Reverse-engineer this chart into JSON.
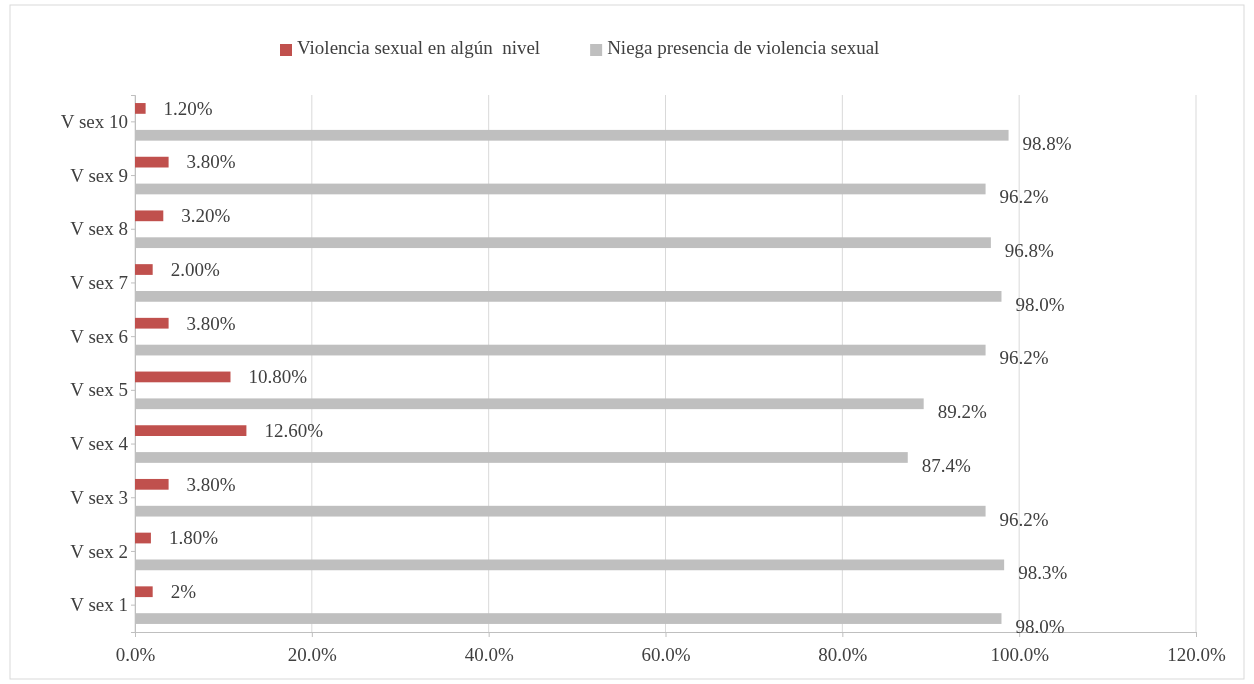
{
  "chart_data": {
    "type": "bar",
    "orientation": "horizontal",
    "categories": [
      "V sex 10",
      "V sex 9",
      "V sex 8",
      "V sex 7",
      "V sex 6",
      "V sex 5",
      "V sex 4",
      "V sex 3",
      "V sex 2",
      "V sex 1"
    ],
    "series": [
      {
        "name": "Violencia sexual en algún  nivel",
        "color": "#c0504d",
        "values": [
          1.2,
          3.8,
          3.2,
          2.0,
          3.8,
          10.8,
          12.6,
          3.8,
          1.8,
          2
        ],
        "value_labels": [
          "1.20%",
          "3.80%",
          "3.20%",
          "2.00%",
          "3.80%",
          "10.80%",
          "12.60%",
          "3.80%",
          "1.80%",
          "2%"
        ]
      },
      {
        "name": "Niega presencia de violencia sexual",
        "color": "#bfbfbf",
        "values": [
          98.8,
          96.2,
          96.8,
          98.0,
          96.2,
          89.2,
          87.4,
          96.2,
          98.3,
          98.0
        ],
        "value_labels": [
          "98.8%",
          "96.2%",
          "96.8%",
          "98.0%",
          "96.2%",
          "89.2%",
          "87.4%",
          "96.2%",
          "98.3%",
          "98.0%"
        ]
      }
    ],
    "xlim": [
      0,
      120
    ],
    "xticks": [
      {
        "value": 0,
        "label": "0.0%"
      },
      {
        "value": 20,
        "label": "20.0%"
      },
      {
        "value": 40,
        "label": "40.0%"
      },
      {
        "value": 60,
        "label": "60.0%"
      },
      {
        "value": 80,
        "label": "80.0%"
      },
      {
        "value": 100,
        "label": "100.0%"
      },
      {
        "value": 120,
        "label": "120.0%"
      }
    ],
    "grid": "x",
    "legend": "top"
  }
}
